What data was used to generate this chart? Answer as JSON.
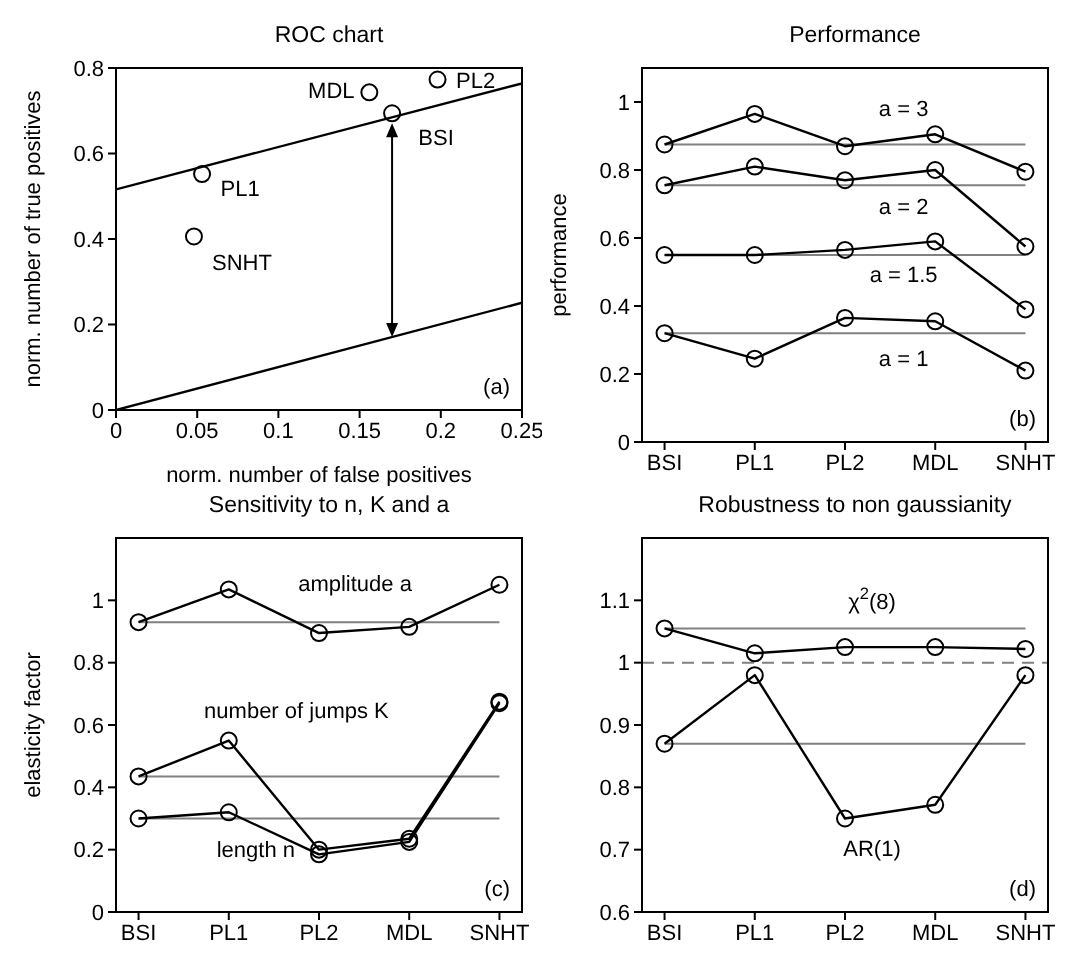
{
  "chart_data": [
    {
      "type": "scatter",
      "title": "ROC chart",
      "xlabel": "norm. number of false positives",
      "ylabel": "norm. number of true positives",
      "xlim": [
        0,
        0.25
      ],
      "xticks": [
        0,
        0.05,
        0.1,
        0.15,
        0.2,
        0.25
      ],
      "ylim": [
        0,
        0.8
      ],
      "yticks": [
        0,
        0.2,
        0.4,
        0.6,
        0.8
      ],
      "marker": "circle",
      "series": [
        {
          "name": "BSI",
          "color": "#000000",
          "x": [
            0.17
          ],
          "values": [
            0.694
          ]
        },
        {
          "name": "PL1",
          "color": "#000000",
          "x": [
            0.053
          ],
          "values": [
            0.552
          ]
        },
        {
          "name": "PL2",
          "color": "#000000",
          "x": [
            0.198
          ],
          "values": [
            0.773
          ]
        },
        {
          "name": "MDL",
          "color": "#000000",
          "x": [
            0.156
          ],
          "values": [
            0.743
          ]
        },
        {
          "name": "SNHT",
          "color": "#000000",
          "x": [
            0.048
          ],
          "values": [
            0.406
          ]
        },
        {
          "type": "line",
          "marker": "none",
          "color": "#000000",
          "x": [
            0,
            0.25
          ],
          "values": [
            0.516,
            0.764
          ]
        },
        {
          "type": "line",
          "marker": "none",
          "color": "#000000",
          "x": [
            0,
            0.25
          ],
          "values": [
            0,
            0.251
          ]
        }
      ],
      "annotations": [
        "(a)"
      ]
    },
    {
      "type": "line",
      "title": "Performance",
      "ylabel": "performance",
      "categories": [
        "BSI",
        "PL1",
        "PL2",
        "MDL",
        "SNHT"
      ],
      "ylim": [
        0,
        1.1
      ],
      "yticks": [
        0,
        0.2,
        0.4,
        0.6,
        0.8,
        1
      ],
      "marker": "circle",
      "series": [
        {
          "name": "a = 3",
          "color": "#000000",
          "values": [
            0.875,
            0.965,
            0.87,
            0.905,
            0.795
          ]
        },
        {
          "name": "a = 2",
          "color": "#000000",
          "values": [
            0.755,
            0.81,
            0.77,
            0.8,
            0.575
          ]
        },
        {
          "name": "a = 1.5",
          "color": "#000000",
          "values": [
            0.55,
            0.55,
            0.565,
            0.59,
            0.39
          ]
        },
        {
          "name": "a = 1",
          "color": "#000000",
          "values": [
            0.32,
            0.245,
            0.365,
            0.355,
            0.21
          ]
        }
      ],
      "ref_lines": [
        {
          "axis": "y",
          "value": 0.875,
          "color": "#808080"
        },
        {
          "axis": "y",
          "value": 0.755,
          "color": "#808080"
        },
        {
          "axis": "y",
          "value": 0.55,
          "color": "#808080"
        },
        {
          "axis": "y",
          "value": 0.32,
          "color": "#808080"
        }
      ],
      "annotations": [
        "(b)"
      ]
    },
    {
      "type": "line",
      "title": "Sensitivity to n, K and a",
      "ylabel": "elasticity factor",
      "categories": [
        "BSI",
        "PL1",
        "PL2",
        "MDL",
        "SNHT"
      ],
      "ylim": [
        0,
        1.2
      ],
      "yticks": [
        0,
        0.2,
        0.4,
        0.6,
        0.8,
        1
      ],
      "marker": "circle",
      "series": [
        {
          "name": "amplitude a",
          "color": "#000000",
          "values": [
            0.93,
            1.035,
            0.895,
            0.915,
            1.05
          ]
        },
        {
          "name": "number of jumps K",
          "color": "#000000",
          "values": [
            0.435,
            0.55,
            0.2,
            0.235,
            0.675
          ]
        },
        {
          "name": "length n",
          "color": "#000000",
          "values": [
            0.3,
            0.32,
            0.185,
            0.225,
            0.67
          ]
        }
      ],
      "ref_lines": [
        {
          "axis": "y",
          "value": 0.93,
          "color": "#808080"
        },
        {
          "axis": "y",
          "value": 0.435,
          "color": "#808080"
        },
        {
          "axis": "y",
          "value": 0.3,
          "color": "#808080"
        }
      ],
      "annotations": [
        "(c)"
      ]
    },
    {
      "type": "line",
      "title": "Robustness to non gaussianity",
      "categories": [
        "BSI",
        "PL1",
        "PL2",
        "MDL",
        "SNHT"
      ],
      "ylim": [
        0.6,
        1.2
      ],
      "yticks": [
        0.6,
        0.7,
        0.8,
        0.9,
        1,
        1.1
      ],
      "marker": "circle",
      "series": [
        {
          "name": "χ$^{2}$(8)",
          "color": "#000000",
          "values": [
            1.055,
            1.015,
            1.025,
            1.025,
            1.022
          ]
        },
        {
          "name": "AR(1)",
          "color": "#000000",
          "values": [
            0.87,
            0.98,
            0.75,
            0.772,
            0.98
          ]
        }
      ],
      "ref_lines": [
        {
          "axis": "y",
          "value": 1.055,
          "color": "#808080"
        },
        {
          "axis": "y",
          "value": 0.87,
          "color": "#808080"
        },
        {
          "axis": "y",
          "value": 1,
          "color": "#808080",
          "line_style": "dashed"
        }
      ],
      "annotations": [
        "(d)"
      ]
    }
  ]
}
